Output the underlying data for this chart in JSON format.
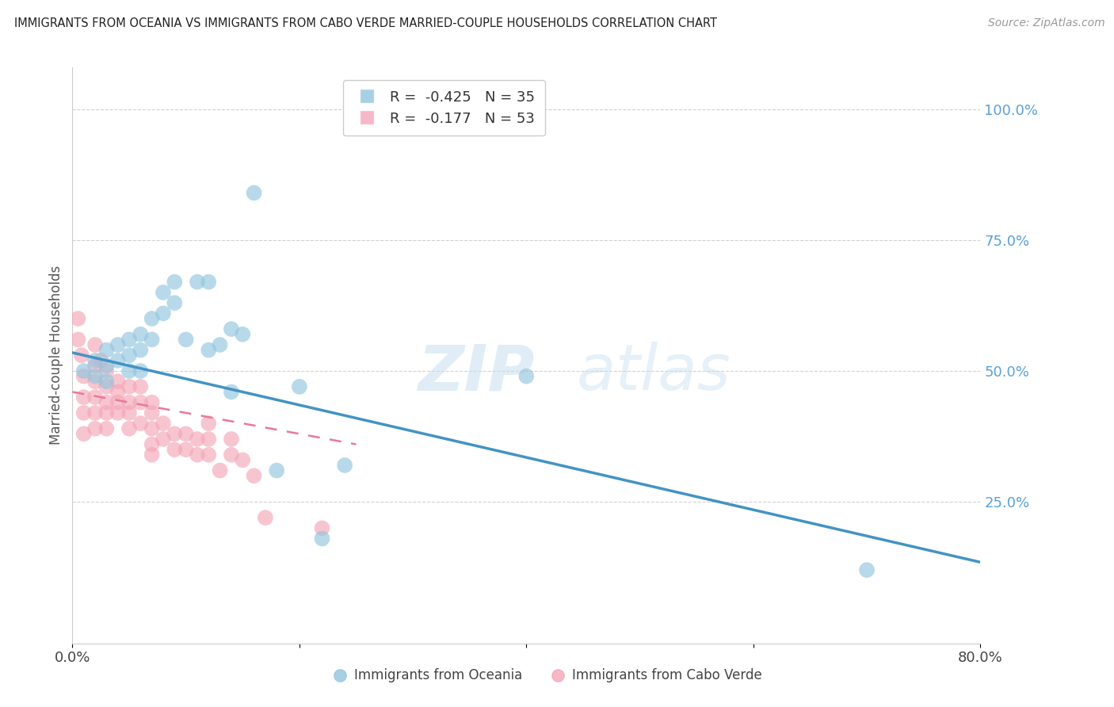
{
  "title": "IMMIGRANTS FROM OCEANIA VS IMMIGRANTS FROM CABO VERDE MARRIED-COUPLE HOUSEHOLDS CORRELATION CHART",
  "source": "Source: ZipAtlas.com",
  "ylabel": "Married-couple Households",
  "right_ytick_labels": [
    "100.0%",
    "75.0%",
    "50.0%",
    "25.0%"
  ],
  "right_ytick_values": [
    1.0,
    0.75,
    0.5,
    0.25
  ],
  "xlim": [
    0.0,
    0.8
  ],
  "ylim": [
    -0.02,
    1.08
  ],
  "oceania_legend_label": "R =  -0.425   N = 35",
  "caboverde_legend_label": "R =  -0.177   N = 53",
  "legend_label_oceania": "Immigrants from Oceania",
  "legend_label_caboverde": "Immigrants from Cabo Verde",
  "oceania_color": "#92c5de",
  "caboverde_color": "#f4a6b8",
  "line_oceania_color": "#4393c3",
  "line_caboverde_color": "#e8799a",
  "grid_color": "#cccccc",
  "background_color": "#ffffff",
  "oceania_line_x0": 0.0,
  "oceania_line_y0": 0.535,
  "oceania_line_x1": 0.8,
  "oceania_line_y1": 0.135,
  "caboverde_line_x0": 0.0,
  "caboverde_line_y0": 0.46,
  "caboverde_line_x1": 0.25,
  "caboverde_line_y1": 0.36,
  "oceania_x": [
    0.01,
    0.02,
    0.02,
    0.03,
    0.03,
    0.03,
    0.04,
    0.04,
    0.05,
    0.05,
    0.05,
    0.06,
    0.06,
    0.06,
    0.07,
    0.07,
    0.08,
    0.08,
    0.09,
    0.09,
    0.1,
    0.11,
    0.12,
    0.12,
    0.13,
    0.14,
    0.14,
    0.15,
    0.18,
    0.2,
    0.22,
    0.24,
    0.4,
    0.7,
    0.16
  ],
  "oceania_y": [
    0.5,
    0.52,
    0.49,
    0.54,
    0.51,
    0.48,
    0.55,
    0.52,
    0.56,
    0.53,
    0.5,
    0.57,
    0.54,
    0.5,
    0.6,
    0.56,
    0.65,
    0.61,
    0.67,
    0.63,
    0.56,
    0.67,
    0.67,
    0.54,
    0.55,
    0.58,
    0.46,
    0.57,
    0.31,
    0.47,
    0.18,
    0.32,
    0.49,
    0.12,
    0.84
  ],
  "caboverde_x": [
    0.005,
    0.005,
    0.008,
    0.01,
    0.01,
    0.01,
    0.01,
    0.02,
    0.02,
    0.02,
    0.02,
    0.02,
    0.02,
    0.025,
    0.03,
    0.03,
    0.03,
    0.03,
    0.03,
    0.04,
    0.04,
    0.04,
    0.04,
    0.05,
    0.05,
    0.05,
    0.05,
    0.06,
    0.06,
    0.06,
    0.07,
    0.07,
    0.07,
    0.07,
    0.07,
    0.08,
    0.08,
    0.09,
    0.09,
    0.1,
    0.1,
    0.11,
    0.11,
    0.12,
    0.12,
    0.12,
    0.13,
    0.14,
    0.14,
    0.15,
    0.16,
    0.17,
    0.22
  ],
  "caboverde_y": [
    0.6,
    0.56,
    0.53,
    0.49,
    0.45,
    0.42,
    0.38,
    0.55,
    0.51,
    0.48,
    0.45,
    0.42,
    0.39,
    0.52,
    0.5,
    0.47,
    0.44,
    0.42,
    0.39,
    0.48,
    0.46,
    0.44,
    0.42,
    0.47,
    0.44,
    0.42,
    0.39,
    0.47,
    0.44,
    0.4,
    0.44,
    0.42,
    0.39,
    0.36,
    0.34,
    0.4,
    0.37,
    0.38,
    0.35,
    0.38,
    0.35,
    0.37,
    0.34,
    0.4,
    0.37,
    0.34,
    0.31,
    0.37,
    0.34,
    0.33,
    0.3,
    0.22,
    0.2
  ]
}
